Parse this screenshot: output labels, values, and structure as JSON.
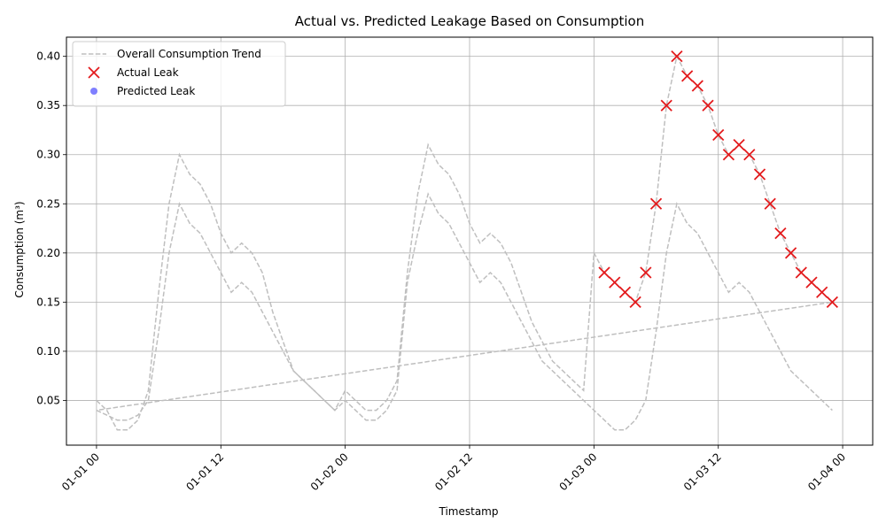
{
  "chart_data": {
    "type": "line",
    "title": "Actual vs. Predicted Leakage Based on Consumption",
    "xlabel": "Timestamp",
    "ylabel": "Consumption (m³)",
    "xlim_hours": [
      -2.9,
      74.9
    ],
    "ylim": [
      0.0045,
      0.4195
    ],
    "grid": true,
    "legend_position": "top-left",
    "x_ticks": [
      {
        "hour": 0,
        "label": "01-01 00"
      },
      {
        "hour": 12,
        "label": "01-01 12"
      },
      {
        "hour": 24,
        "label": "01-02 00"
      },
      {
        "hour": 36,
        "label": "01-02 12"
      },
      {
        "hour": 48,
        "label": "01-03 00"
      },
      {
        "hour": 60,
        "label": "01-03 12"
      },
      {
        "hour": 72,
        "label": "01-04 00"
      }
    ],
    "y_ticks": [
      0.05,
      0.1,
      0.15,
      0.2,
      0.25,
      0.3,
      0.35,
      0.4
    ],
    "y_tick_labels": [
      "0.05",
      "0.10",
      "0.15",
      "0.20",
      "0.25",
      "0.30",
      "0.35",
      "0.40"
    ],
    "series": [
      {
        "name": "Overall Consumption Trend",
        "style": "dashed-line",
        "color": "#bfbfbf",
        "segments": [
          {
            "points": [
              [
                0,
                0.04
              ],
              [
                1,
                0.035
              ],
              [
                2,
                0.03
              ],
              [
                3,
                0.03
              ],
              [
                4,
                0.035
              ],
              [
                5,
                0.05
              ],
              [
                6,
                0.12
              ],
              [
                7,
                0.2
              ],
              [
                8,
                0.25
              ],
              [
                9,
                0.23
              ],
              [
                10,
                0.22
              ],
              [
                11,
                0.2
              ],
              [
                12,
                0.18
              ],
              [
                13,
                0.16
              ],
              [
                14,
                0.17
              ],
              [
                15,
                0.16
              ],
              [
                16,
                0.14
              ],
              [
                17,
                0.12
              ],
              [
                18,
                0.1
              ],
              [
                19,
                0.08
              ],
              [
                20,
                0.07
              ],
              [
                21,
                0.06
              ],
              [
                22,
                0.05
              ],
              [
                23,
                0.04
              ],
              [
                24,
                0.05
              ],
              [
                25,
                0.04
              ],
              [
                26,
                0.03
              ],
              [
                27,
                0.03
              ],
              [
                28,
                0.04
              ],
              [
                29,
                0.06
              ],
              [
                30,
                0.17
              ],
              [
                31,
                0.22
              ],
              [
                32,
                0.26
              ],
              [
                33,
                0.24
              ],
              [
                34,
                0.23
              ],
              [
                35,
                0.21
              ],
              [
                36,
                0.19
              ],
              [
                37,
                0.17
              ],
              [
                38,
                0.18
              ],
              [
                39,
                0.17
              ],
              [
                40,
                0.15
              ],
              [
                41,
                0.13
              ],
              [
                42,
                0.11
              ],
              [
                43,
                0.09
              ],
              [
                44,
                0.08
              ],
              [
                45,
                0.07
              ],
              [
                46,
                0.06
              ],
              [
                47,
                0.05
              ],
              [
                48,
                0.04
              ],
              [
                49,
                0.03
              ],
              [
                50,
                0.02
              ],
              [
                51,
                0.02
              ],
              [
                52,
                0.03
              ],
              [
                53,
                0.05
              ],
              [
                54,
                0.12
              ],
              [
                55,
                0.2
              ],
              [
                56,
                0.25
              ],
              [
                57,
                0.23
              ],
              [
                58,
                0.22
              ],
              [
                59,
                0.2
              ],
              [
                60,
                0.18
              ],
              [
                61,
                0.16
              ],
              [
                62,
                0.17
              ],
              [
                63,
                0.16
              ],
              [
                64,
                0.14
              ],
              [
                65,
                0.12
              ],
              [
                66,
                0.1
              ],
              [
                67,
                0.08
              ],
              [
                68,
                0.07
              ],
              [
                69,
                0.06
              ],
              [
                70,
                0.05
              ],
              [
                71,
                0.04
              ]
            ]
          },
          {
            "points": [
              [
                0,
                0.05
              ],
              [
                1,
                0.04
              ],
              [
                2,
                0.02
              ],
              [
                3,
                0.02
              ],
              [
                4,
                0.03
              ],
              [
                5,
                0.06
              ],
              [
                6,
                0.16
              ],
              [
                7,
                0.25
              ],
              [
                8,
                0.3
              ],
              [
                9,
                0.28
              ],
              [
                10,
                0.27
              ],
              [
                11,
                0.25
              ],
              [
                12,
                0.22
              ],
              [
                13,
                0.2
              ],
              [
                14,
                0.21
              ],
              [
                15,
                0.2
              ],
              [
                16,
                0.18
              ],
              [
                17,
                0.14
              ],
              [
                18,
                0.11
              ],
              [
                19,
                0.08
              ],
              [
                20,
                0.07
              ],
              [
                21,
                0.06
              ],
              [
                22,
                0.05
              ],
              [
                23,
                0.04
              ],
              [
                24,
                0.06
              ],
              [
                25,
                0.05
              ],
              [
                26,
                0.04
              ],
              [
                27,
                0.04
              ],
              [
                28,
                0.05
              ],
              [
                29,
                0.07
              ],
              [
                30,
                0.18
              ],
              [
                31,
                0.26
              ],
              [
                32,
                0.31
              ],
              [
                33,
                0.29
              ],
              [
                34,
                0.28
              ],
              [
                35,
                0.26
              ],
              [
                36,
                0.23
              ],
              [
                37,
                0.21
              ],
              [
                38,
                0.22
              ],
              [
                39,
                0.21
              ],
              [
                40,
                0.19
              ],
              [
                41,
                0.16
              ],
              [
                42,
                0.13
              ],
              [
                43,
                0.11
              ],
              [
                44,
                0.09
              ],
              [
                45,
                0.08
              ],
              [
                46,
                0.07
              ],
              [
                47,
                0.06
              ],
              [
                48,
                0.2
              ],
              [
                49,
                0.18
              ],
              [
                50,
                0.17
              ],
              [
                51,
                0.16
              ],
              [
                52,
                0.15
              ],
              [
                53,
                0.18
              ],
              [
                54,
                0.25
              ],
              [
                55,
                0.35
              ],
              [
                56,
                0.4
              ],
              [
                57,
                0.38
              ],
              [
                58,
                0.37
              ],
              [
                59,
                0.35
              ],
              [
                60,
                0.32
              ],
              [
                61,
                0.3
              ],
              [
                62,
                0.31
              ],
              [
                63,
                0.3
              ],
              [
                64,
                0.28
              ],
              [
                65,
                0.25
              ],
              [
                66,
                0.22
              ],
              [
                67,
                0.2
              ],
              [
                68,
                0.18
              ],
              [
                69,
                0.17
              ],
              [
                70,
                0.16
              ],
              [
                71,
                0.15
              ],
              [
                0,
                0.04
              ]
            ]
          }
        ]
      },
      {
        "name": "Actual Leak",
        "style": "x-marker",
        "color": "#e31a1c",
        "points": [
          [
            49,
            0.18
          ],
          [
            50,
            0.17
          ],
          [
            51,
            0.16
          ],
          [
            52,
            0.15
          ],
          [
            53,
            0.18
          ],
          [
            54,
            0.25
          ],
          [
            55,
            0.35
          ],
          [
            56,
            0.4
          ],
          [
            57,
            0.38
          ],
          [
            58,
            0.37
          ],
          [
            59,
            0.35
          ],
          [
            60,
            0.32
          ],
          [
            61,
            0.3
          ],
          [
            62,
            0.31
          ],
          [
            63,
            0.3
          ],
          [
            64,
            0.28
          ],
          [
            65,
            0.25
          ],
          [
            66,
            0.22
          ],
          [
            67,
            0.2
          ],
          [
            68,
            0.18
          ],
          [
            69,
            0.17
          ],
          [
            70,
            0.16
          ],
          [
            71,
            0.15
          ]
        ]
      },
      {
        "name": "Predicted Leak",
        "style": "circle-marker",
        "color": "#0000ff",
        "points": []
      }
    ]
  }
}
